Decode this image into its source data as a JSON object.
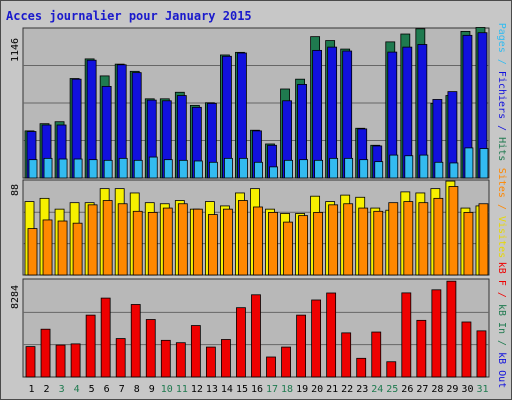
{
  "colors": {
    "hits": "#1f7a4f",
    "files": "#1111dd",
    "pages": "#33bbf0",
    "visits": "#f7f000",
    "sites": "#ff8800",
    "kbf": "#ee0000",
    "kbin": "#1f7a4f",
    "kbout": "#1111dd",
    "weekend_label": "#1f7a4f",
    "weekday_label": "#000000"
  },
  "chart_data": [
    {
      "type": "bar",
      "title": "Acces journalier pour January 2015",
      "ymax_label": "1146",
      "legend": [
        "Pages",
        "Fichiers",
        "Hits"
      ],
      "x": [
        "1",
        "2",
        "3",
        "4",
        "5",
        "6",
        "7",
        "8",
        "9",
        "10",
        "11",
        "12",
        "13",
        "14",
        "15",
        "16",
        "17",
        "18",
        "19",
        "20",
        "21",
        "22",
        "23",
        "24",
        "25",
        "26",
        "27",
        "28",
        "29",
        "30",
        "31"
      ],
      "weekend": [
        3,
        4,
        10,
        11,
        17,
        18,
        24,
        25,
        31
      ],
      "ylim": [
        0,
        1146
      ],
      "series": [
        {
          "name": "Hits",
          "values": [
            360,
            415,
            430,
            760,
            910,
            780,
            870,
            815,
            605,
            605,
            655,
            555,
            575,
            940,
            960,
            365,
            260,
            680,
            755,
            1080,
            1050,
            985,
            380,
            250,
            1040,
            1100,
            1140,
            570,
            630,
            1120,
            1150
          ]
        },
        {
          "name": "Fichiers",
          "values": [
            355,
            405,
            405,
            755,
            900,
            700,
            865,
            805,
            595,
            590,
            630,
            540,
            570,
            930,
            955,
            360,
            250,
            590,
            715,
            975,
            1000,
            970,
            375,
            245,
            962,
            1000,
            1020,
            600,
            660,
            1090,
            1110
          ]
        },
        {
          "name": "Pages",
          "values": [
            140,
            150,
            145,
            145,
            140,
            135,
            150,
            135,
            160,
            140,
            135,
            130,
            120,
            150,
            150,
            120,
            85,
            135,
            140,
            135,
            150,
            150,
            140,
            125,
            175,
            170,
            175,
            120,
            115,
            230,
            225
          ]
        }
      ]
    },
    {
      "type": "bar",
      "ymax_label": "88",
      "legend": [
        "Sites",
        "Visites"
      ],
      "x": [
        "1",
        "2",
        "3",
        "4",
        "5",
        "6",
        "7",
        "8",
        "9",
        "10",
        "11",
        "12",
        "13",
        "14",
        "15",
        "16",
        "17",
        "18",
        "19",
        "20",
        "21",
        "22",
        "23",
        "24",
        "25",
        "26",
        "27",
        "28",
        "29",
        "30",
        "31"
      ],
      "ylim": [
        0,
        88
      ],
      "series": [
        {
          "name": "Visites",
          "values": [
            68,
            71,
            61,
            67,
            67,
            80,
            80,
            76,
            67,
            66,
            69,
            61,
            68,
            64,
            76,
            80,
            61,
            57,
            57,
            73,
            68,
            74,
            72,
            62,
            60,
            77,
            76,
            80,
            87,
            62,
            64
          ]
        },
        {
          "name": "Sites",
          "values": [
            43,
            51,
            50,
            48,
            65,
            69,
            66,
            59,
            58,
            62,
            66,
            61,
            56,
            61,
            69,
            63,
            58,
            49,
            55,
            58,
            65,
            66,
            62,
            59,
            67,
            68,
            67,
            71,
            82,
            58,
            66
          ]
        }
      ]
    },
    {
      "type": "bar",
      "ymax_label": "8284",
      "legend": [
        "kB F",
        "kB In",
        "kB Out"
      ],
      "x": [
        "1",
        "2",
        "3",
        "4",
        "5",
        "6",
        "7",
        "8",
        "9",
        "10",
        "11",
        "12",
        "13",
        "14",
        "15",
        "16",
        "17",
        "18",
        "19",
        "20",
        "21",
        "22",
        "23",
        "24",
        "25",
        "26",
        "27",
        "28",
        "29",
        "30",
        "31"
      ],
      "ylim": [
        0,
        8284
      ],
      "series": [
        {
          "name": "kB F",
          "values": [
            2570,
            4040,
            2700,
            2800,
            5230,
            6670,
            3250,
            6130,
            4860,
            3100,
            2900,
            4350,
            2530,
            3170,
            5860,
            6950,
            1690,
            2530,
            5230,
            6510,
            7100,
            3730,
            1580,
            3800,
            1290,
            7110,
            4790,
            7370,
            8100,
            4650,
            3900
          ]
        }
      ]
    }
  ],
  "labels": {
    "side1": [
      {
        "text": "Pages",
        "color": "#33bbf0"
      },
      {
        "text": " / ",
        "color": "#33bbf0"
      },
      {
        "text": "Fichiers",
        "color": "#1111dd"
      },
      {
        "text": " / ",
        "color": "#1111dd"
      },
      {
        "text": "Hits",
        "color": "#1f7a4f"
      }
    ],
    "side2": [
      {
        "text": "Sites",
        "color": "#ff8800"
      },
      {
        "text": " / ",
        "color": "#ff8800"
      },
      {
        "text": "Visites",
        "color": "#e8d800"
      }
    ],
    "side3": [
      {
        "text": "kB F",
        "color": "#ee0000"
      },
      {
        "text": " / ",
        "color": "#ee0000"
      },
      {
        "text": "kB In",
        "color": "#1f7a4f"
      },
      {
        "text": " / ",
        "color": "#1f7a4f"
      },
      {
        "text": "kB Out",
        "color": "#1111dd"
      }
    ]
  }
}
